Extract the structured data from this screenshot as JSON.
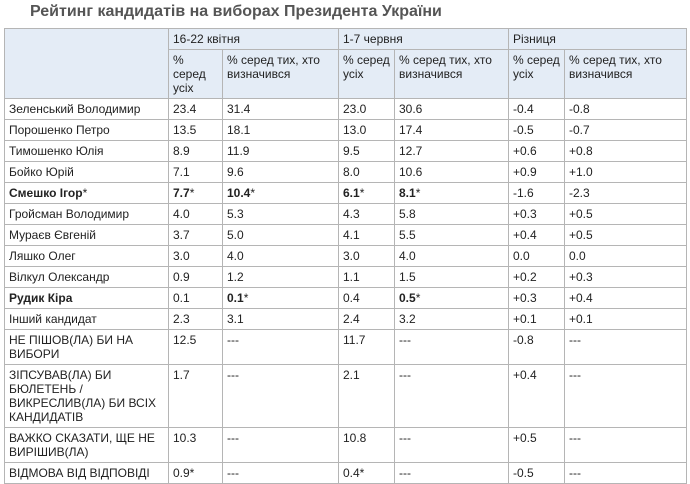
{
  "header": {
    "title": "Рейтинг кандидатів на виборах Президента України"
  },
  "table": {
    "groups": [
      {
        "label": "16-22 квітня",
        "sub": [
          "% серед усіх",
          "% серед тих, хто визначився"
        ]
      },
      {
        "label": "1-7 червня",
        "sub": [
          "% серед усіх",
          "% серед тих, хто визначився"
        ]
      },
      {
        "label": "Різниця",
        "sub": [
          "% серед усіх",
          "% серед тих, хто визначився"
        ]
      }
    ],
    "rows": [
      [
        "Зеленський Володимир",
        "23.4",
        "31.4",
        "23.0",
        "30.6",
        "-0.4",
        "-0.8"
      ],
      [
        "Порошенко Петро",
        "13.5",
        "18.1",
        "13.0",
        "17.4",
        "-0.5",
        "-0.7"
      ],
      [
        "Тимошенко Юлія",
        "8.9",
        "11.9",
        "9.5",
        "12.7",
        "+0.6",
        "+0.8"
      ],
      [
        "Бойко Юрій",
        "7.1",
        "9.6",
        "8.0",
        "10.6",
        "+0.9",
        "+1.0"
      ],
      [
        {
          "text": "Смешко Ігор",
          "footnote": "*",
          "bold": true
        },
        {
          "text": "7.7",
          "footnote": "*",
          "bold": true
        },
        {
          "text": "10.4",
          "footnote": "*",
          "bold": true
        },
        {
          "text": "6.1",
          "footnote": "*",
          "bold": true
        },
        {
          "text": "8.1",
          "footnote": "*",
          "bold": true
        },
        "-1.6",
        "-2.3"
      ],
      [
        "Гройсман Володимир",
        "4.0",
        "5.3",
        "4.3",
        "5.8",
        "+0.3",
        "+0.5"
      ],
      [
        "Мураєв Євгеній",
        "3.7",
        "5.0",
        "4.1",
        "5.5",
        "+0.4",
        "+0.5"
      ],
      [
        "Ляшко Олег",
        "3.0",
        "4.0",
        "3.0",
        "4.0",
        "0.0",
        "0.0"
      ],
      [
        "Вілкул Олександр",
        "0.9",
        "1.2",
        "1.1",
        "1.5",
        "+0.2",
        "+0.3"
      ],
      [
        {
          "text": "Рудик Кіра",
          "footnote": "",
          "bold": true
        },
        "0.1",
        {
          "text": "0.1",
          "footnote": "*",
          "bold": true
        },
        "0.4",
        {
          "text": "0.5",
          "footnote": "*",
          "bold": true
        },
        "+0.3",
        "+0.4"
      ],
      [
        "Інший кандидат",
        "2.3",
        "3.1",
        "2.4",
        "3.2",
        "+0.1",
        "+0.1"
      ],
      [
        "НЕ ПІШОВ(ЛА) БИ НА ВИБОРИ",
        "12.5",
        "---",
        "11.7",
        "---",
        "-0.8",
        "---"
      ],
      [
        "ЗІПСУВАВ(ЛА) БИ БЮЛЕТЕНЬ / ВИКРЕСЛИВ(ЛА) БИ ВСІХ КАНДИДАТІВ",
        "1.7",
        "---",
        "2.1",
        "---",
        "+0.4",
        "---"
      ],
      [
        "ВАЖКО СКАЗАТИ, ЩЕ НЕ ВИРІШИВ(ЛА)",
        "10.3",
        "---",
        "10.8",
        "---",
        "+0.5",
        "---"
      ],
      [
        "ВІДМОВА ВІД ВІДПОВІДІ",
        "0.9*",
        "---",
        "0.4*",
        "---",
        "-0.5",
        "---"
      ]
    ]
  }
}
